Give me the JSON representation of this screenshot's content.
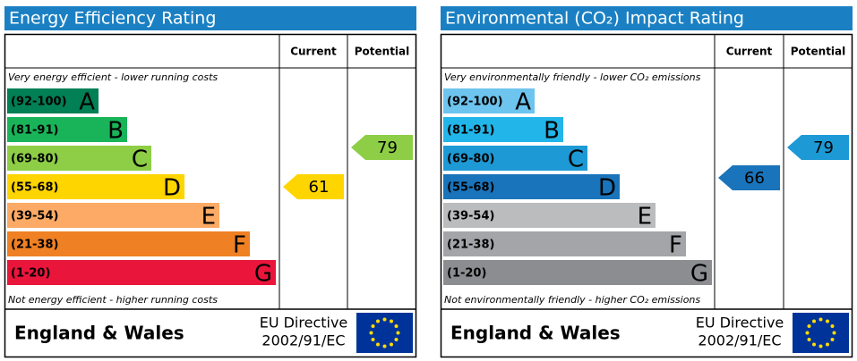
{
  "panels": [
    {
      "title": "Energy Efficiency Rating",
      "current_header": "Current",
      "potential_header": "Potential",
      "top_note": "Very energy efficient - lower running costs",
      "bottom_note": "Not energy efficient - higher running costs",
      "bands": [
        {
          "range": "(92-100)",
          "letter": "A",
          "color": "#008054"
        },
        {
          "range": "(81-91)",
          "letter": "B",
          "color": "#19b459"
        },
        {
          "range": "(69-80)",
          "letter": "C",
          "color": "#8dce46"
        },
        {
          "range": "(55-68)",
          "letter": "D",
          "color": "#ffd500"
        },
        {
          "range": "(39-54)",
          "letter": "E",
          "color": "#fcaa65"
        },
        {
          "range": "(21-38)",
          "letter": "F",
          "color": "#ef8023"
        },
        {
          "range": "(1-20)",
          "letter": "G",
          "color": "#e9153b"
        }
      ],
      "current": {
        "value": "61",
        "color": "#ffd500"
      },
      "potential": {
        "value": "79",
        "color": "#8dce46"
      },
      "region": "England & Wales",
      "directive": [
        "EU Directive",
        "2002/91/EC"
      ]
    },
    {
      "title": "Environmental (CO₂) Impact Rating",
      "current_header": "Current",
      "potential_header": "Potential",
      "top_note": "Very environmentally friendly - lower CO₂ emissions",
      "bottom_note": "Not environmentally friendly - higher CO₂ emissions",
      "bands": [
        {
          "range": "(92-100)",
          "letter": "A",
          "color": "#6dc4ef"
        },
        {
          "range": "(81-91)",
          "letter": "B",
          "color": "#22b5e9"
        },
        {
          "range": "(69-80)",
          "letter": "C",
          "color": "#1d9ad6"
        },
        {
          "range": "(55-68)",
          "letter": "D",
          "color": "#1a74bb"
        },
        {
          "range": "(39-54)",
          "letter": "E",
          "color": "#bbbcbe"
        },
        {
          "range": "(21-38)",
          "letter": "F",
          "color": "#a3a5a8"
        },
        {
          "range": "(1-20)",
          "letter": "G",
          "color": "#8b8d90"
        }
      ],
      "current": {
        "value": "66",
        "color": "#1a74bb"
      },
      "potential": {
        "value": "79",
        "color": "#1d9ad6"
      },
      "region": "England & Wales",
      "directive": [
        "EU Directive",
        "2002/91/EC"
      ]
    }
  ]
}
